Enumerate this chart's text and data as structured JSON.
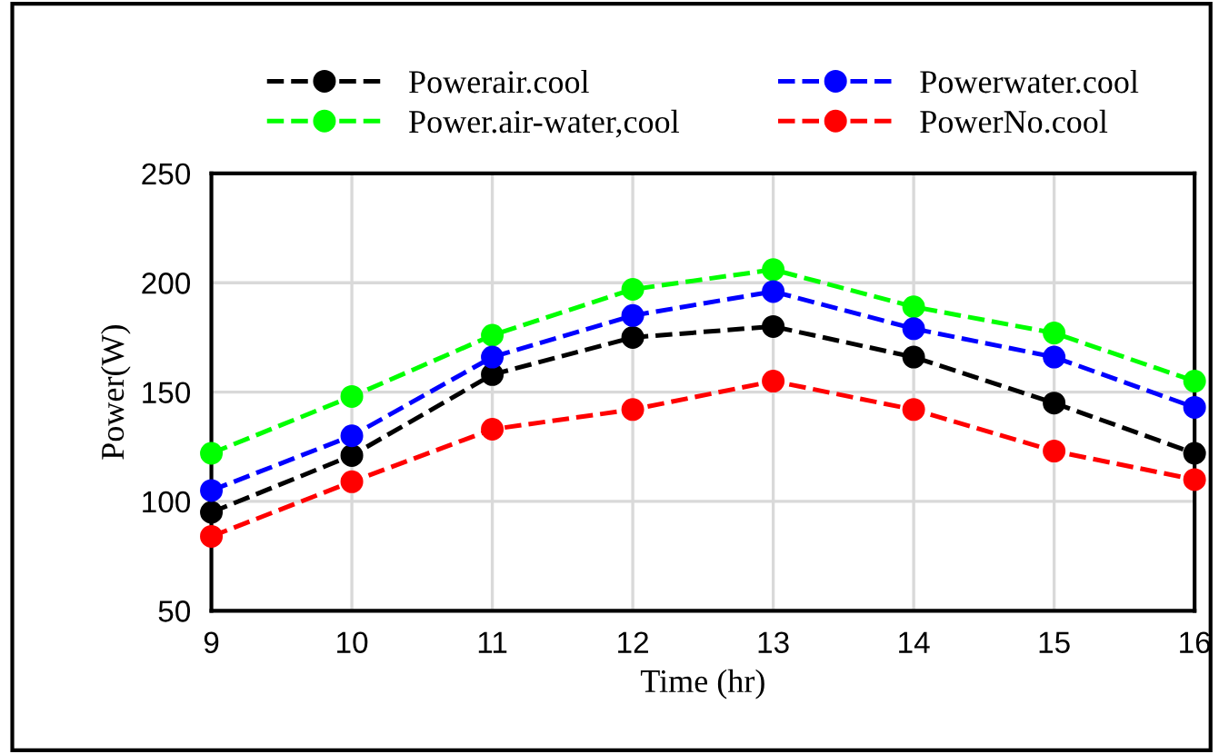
{
  "chart_data": {
    "type": "line",
    "xlabel": "Time (hr)",
    "ylabel": "Power(W)",
    "x": [
      9,
      10,
      11,
      12,
      13,
      14,
      15,
      16
    ],
    "series": [
      {
        "name": "Powerair.cool",
        "color": "#000000",
        "values": [
          95,
          121,
          158,
          175,
          180,
          166,
          145,
          122
        ]
      },
      {
        "name": "Power.air-water,cool",
        "color": "#00ff00",
        "values": [
          122,
          148,
          176,
          197,
          206,
          189,
          177,
          155
        ]
      },
      {
        "name": "Powerwater.cool",
        "color": "#0000ff",
        "values": [
          105,
          130,
          166,
          185,
          196,
          179,
          166,
          143
        ]
      },
      {
        "name": "PowerNo.cool",
        "color": "#ff0000",
        "values": [
          84,
          109,
          133,
          142,
          155,
          142,
          123,
          110
        ]
      }
    ],
    "xlim": [
      9,
      16
    ],
    "xticks": [
      9,
      10,
      11,
      12,
      13,
      14,
      15,
      16
    ],
    "ylim": [
      50,
      250
    ],
    "yticks": [
      50,
      100,
      150,
      200,
      250
    ],
    "grid": true,
    "legend": "top",
    "marker": "circle",
    "line_style": "dashed"
  }
}
